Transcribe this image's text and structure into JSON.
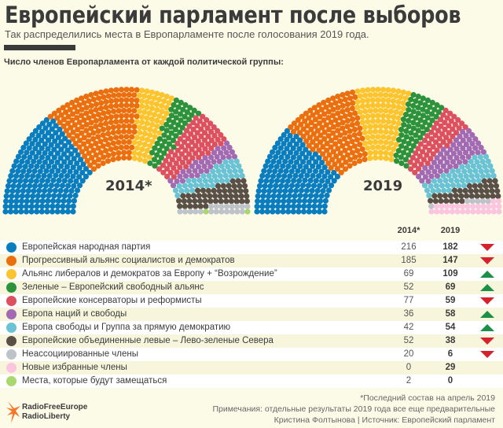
{
  "header": {
    "title": "Европейский парламент после выборов",
    "subtitle": "Так распределились места в Европарламенте после голосования 2019 года.",
    "section": "Число членов Европарламента от каждой политической группы:"
  },
  "columns": {
    "y2014": "2014*",
    "y2019": "2019"
  },
  "chart_data": {
    "type": "parliament",
    "title": "Европейский парламент после выборов",
    "charts": [
      {
        "label": "2014*",
        "key": "y2014"
      },
      {
        "label": "2019",
        "key": "y2019"
      }
    ],
    "groups": [
      {
        "name": "Европейская народная партия",
        "color": "#0a7dbf",
        "y2014": 216,
        "y2019": 182,
        "trend": "down"
      },
      {
        "name": "Прогрессивный альянс социалистов и демократов",
        "color": "#ec6f0f",
        "y2014": 185,
        "y2019": 147,
        "trend": "down"
      },
      {
        "name": "Альянс либералов и демократов за Европу + “Возрождение”",
        "color": "#fcc52f",
        "y2014": 69,
        "y2019": 109,
        "trend": "up"
      },
      {
        "name": "Зеленые – Европейский свободный альянс",
        "color": "#2c923b",
        "y2014": 52,
        "y2019": 69,
        "trend": "up"
      },
      {
        "name": "Европейские консерваторы и реформисты",
        "color": "#dd5060",
        "y2014": 77,
        "y2019": 59,
        "trend": "down"
      },
      {
        "name": "Европа наций и свободы",
        "color": "#a26ab3",
        "y2014": 36,
        "y2019": 58,
        "trend": "up"
      },
      {
        "name": "Европа свободы и Группа за прямую демократию",
        "color": "#6ac3d4",
        "y2014": 42,
        "y2019": 54,
        "trend": "up"
      },
      {
        "name": "Европейские объединенные левые – Лево-зеленые Севера",
        "color": "#5a5048",
        "y2014": 52,
        "y2019": 38,
        "trend": "down"
      },
      {
        "name": "Неассоциированные члены",
        "color": "#bdc3c9",
        "y2014": 20,
        "y2019": 6,
        "trend": "down"
      },
      {
        "name": "Новые избранные члены",
        "color": "#fbc5e0",
        "y2014": 0,
        "y2019": 29,
        "trend": ""
      },
      {
        "name": "Места, которые будут замещаться",
        "color": "#a9d86e",
        "y2014": 2,
        "y2019": 0,
        "trend": ""
      }
    ]
  },
  "footer": {
    "note1": "*Последний состав на апрель 2019",
    "note2": "Примечания: отдельные результаты 2019 года все еще предварительные",
    "note3": "Кристина Фолтынова | Источник: Европейский парламент",
    "logo_line1": "RadioFreeEurope",
    "logo_line2": "RadioLiberty"
  }
}
